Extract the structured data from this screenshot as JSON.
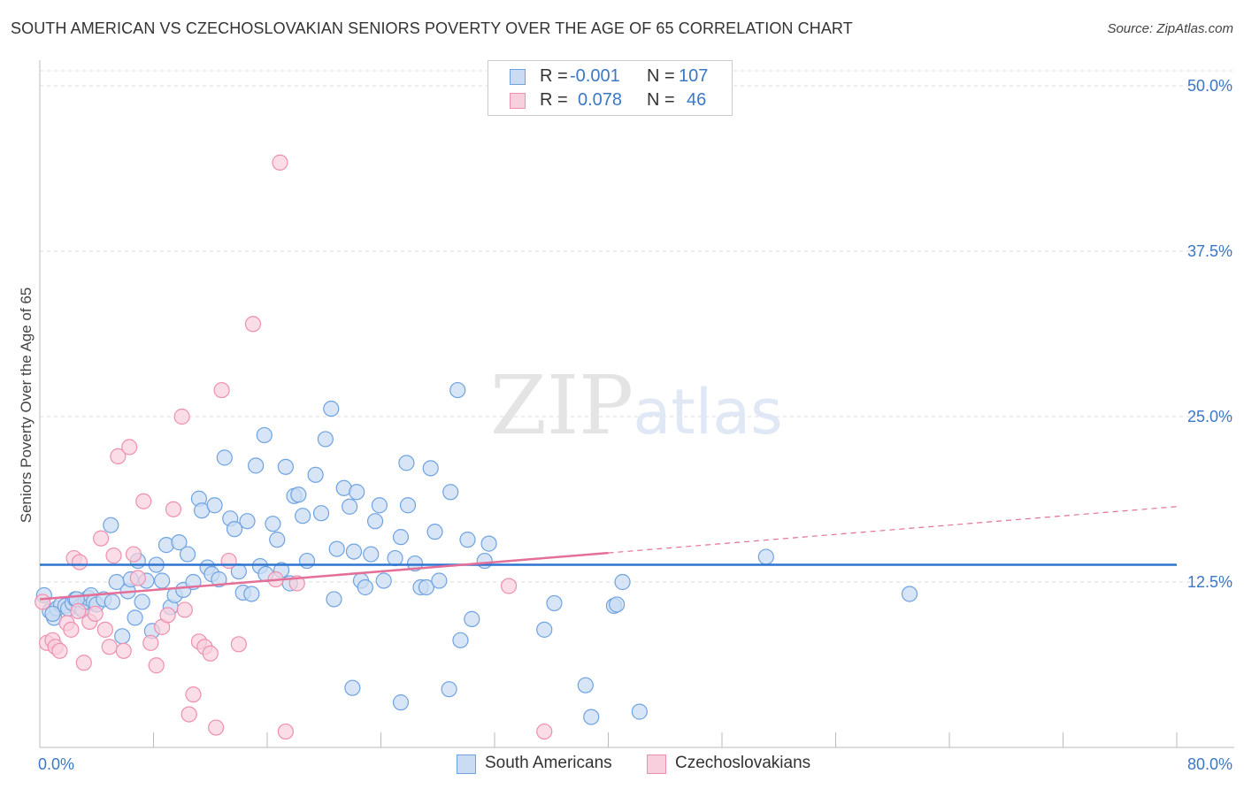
{
  "header": {
    "title": "SOUTH AMERICAN VS CZECHOSLOVAKIAN SENIORS POVERTY OVER THE AGE OF 65 CORRELATION CHART",
    "source": "Source: ZipAtlas.com"
  },
  "watermark": {
    "zip": "ZIP",
    "atlas": "atlas"
  },
  "legend": {
    "rows": [
      {
        "r_label": "R =",
        "r_value": "-0.001",
        "n_label": "N =",
        "n_value": "107",
        "color": "#6fa3e0"
      },
      {
        "r_label": "R =",
        "r_value": "0.078",
        "n_label": "N =",
        "n_value": "46",
        "color": "#f08fb0"
      }
    ]
  },
  "bottom_legend": {
    "series1": "South Americans",
    "series2": "Czechoslovakians"
  },
  "colors": {
    "blue_fill": "#c9dcf3",
    "blue_stroke": "#6fa3e0",
    "blue_line": "#2f74d0",
    "pink_fill": "#f8cfdc",
    "pink_stroke": "#ee8fb0",
    "pink_line": "#e46f98",
    "axis_text": "#3a78c6",
    "grid": "#dddddd"
  },
  "chart_data": {
    "type": "scatter",
    "title": "SOUTH AMERICAN VS CZECHOSLOVAKIAN SENIORS POVERTY OVER THE AGE OF 65 CORRELATION CHART",
    "xlabel": "",
    "ylabel": "Seniors Poverty Over the Age of 65",
    "xlim": [
      0,
      80
    ],
    "ylim": [
      0,
      50
    ],
    "x_tick_labels": [
      "0.0%",
      "80.0%"
    ],
    "y_ticks": [
      12.5,
      25.0,
      37.5,
      50.0
    ],
    "y_tick_labels": [
      "12.5%",
      "25.0%",
      "37.5%",
      "50.0%"
    ],
    "series": [
      {
        "name": "South Americans",
        "r": -0.001,
        "n": 107,
        "trend": {
          "x": [
            0,
            80
          ],
          "y": [
            13.8,
            13.8
          ]
        },
        "points": [
          [
            0.3,
            11.5
          ],
          [
            0.7,
            10.3
          ],
          [
            1.0,
            9.8
          ],
          [
            1.2,
            10.5
          ],
          [
            1.5,
            10.8
          ],
          [
            1.8,
            10.7
          ],
          [
            2.0,
            10.5
          ],
          [
            2.3,
            10.9
          ],
          [
            2.5,
            11.2
          ],
          [
            2.8,
            10.6
          ],
          [
            3.0,
            10.4
          ],
          [
            3.2,
            11.0
          ],
          [
            3.4,
            11.3
          ],
          [
            3.6,
            11.5
          ],
          [
            3.8,
            11.0
          ],
          [
            4.0,
            10.8
          ],
          [
            4.5,
            11.2
          ],
          [
            5.0,
            16.8
          ],
          [
            5.1,
            11.0
          ],
          [
            5.4,
            12.5
          ],
          [
            5.8,
            8.4
          ],
          [
            6.2,
            11.8
          ],
          [
            6.4,
            12.7
          ],
          [
            6.7,
            9.8
          ],
          [
            6.9,
            14.1
          ],
          [
            7.2,
            11.0
          ],
          [
            7.5,
            12.6
          ],
          [
            7.9,
            8.8
          ],
          [
            8.2,
            13.8
          ],
          [
            8.6,
            12.6
          ],
          [
            8.9,
            15.3
          ],
          [
            9.2,
            10.6
          ],
          [
            9.5,
            11.5
          ],
          [
            9.8,
            15.5
          ],
          [
            10.1,
            11.9
          ],
          [
            10.4,
            14.6
          ],
          [
            10.8,
            12.5
          ],
          [
            11.2,
            18.8
          ],
          [
            11.4,
            17.9
          ],
          [
            11.8,
            13.6
          ],
          [
            12.1,
            13.1
          ],
          [
            12.3,
            18.3
          ],
          [
            12.6,
            12.7
          ],
          [
            13.0,
            21.9
          ],
          [
            13.4,
            17.3
          ],
          [
            13.7,
            16.5
          ],
          [
            14.0,
            13.3
          ],
          [
            14.3,
            11.7
          ],
          [
            14.6,
            17.1
          ],
          [
            14.9,
            11.6
          ],
          [
            15.2,
            21.3
          ],
          [
            15.5,
            13.7
          ],
          [
            15.8,
            23.6
          ],
          [
            15.9,
            13.1
          ],
          [
            16.4,
            16.9
          ],
          [
            16.7,
            15.7
          ],
          [
            17.0,
            13.4
          ],
          [
            17.3,
            21.2
          ],
          [
            17.6,
            12.4
          ],
          [
            17.9,
            19.0
          ],
          [
            18.2,
            19.1
          ],
          [
            18.5,
            17.5
          ],
          [
            18.8,
            14.1
          ],
          [
            19.4,
            20.6
          ],
          [
            19.8,
            17.7
          ],
          [
            20.1,
            23.3
          ],
          [
            20.5,
            25.6
          ],
          [
            20.7,
            11.2
          ],
          [
            20.9,
            15.0
          ],
          [
            21.4,
            19.6
          ],
          [
            21.8,
            18.2
          ],
          [
            22.1,
            14.8
          ],
          [
            22.3,
            19.3
          ],
          [
            22.6,
            12.6
          ],
          [
            22.9,
            12.1
          ],
          [
            23.3,
            14.6
          ],
          [
            23.6,
            17.1
          ],
          [
            23.9,
            18.3
          ],
          [
            24.2,
            12.6
          ],
          [
            25.0,
            14.3
          ],
          [
            25.4,
            15.9
          ],
          [
            25.8,
            21.5
          ],
          [
            25.9,
            18.3
          ],
          [
            26.4,
            13.9
          ],
          [
            26.8,
            12.1
          ],
          [
            27.2,
            12.1
          ],
          [
            27.5,
            21.1
          ],
          [
            27.8,
            16.3
          ],
          [
            28.1,
            12.6
          ],
          [
            28.9,
            19.3
          ],
          [
            29.4,
            27.0
          ],
          [
            29.6,
            8.1
          ],
          [
            30.1,
            15.7
          ],
          [
            30.4,
            9.7
          ],
          [
            31.3,
            14.1
          ],
          [
            31.6,
            15.4
          ],
          [
            35.5,
            8.9
          ],
          [
            36.2,
            10.9
          ],
          [
            22.0,
            4.5
          ],
          [
            25.4,
            3.4
          ],
          [
            28.8,
            4.4
          ],
          [
            38.4,
            4.7
          ],
          [
            38.8,
            2.3
          ],
          [
            40.4,
            10.7
          ],
          [
            40.6,
            10.8
          ],
          [
            41.0,
            12.5
          ],
          [
            42.2,
            2.7
          ],
          [
            51.1,
            14.4
          ],
          [
            61.2,
            11.6
          ],
          [
            2.6,
            11.2
          ],
          [
            0.9,
            10.1
          ]
        ]
      },
      {
        "name": "Czechoslovakians",
        "r": 0.078,
        "n": 46,
        "trend": {
          "x": [
            0,
            40
          ],
          "y": [
            11.2,
            14.7
          ],
          "dashed_to": [
            80,
            18.2
          ]
        },
        "points": [
          [
            0.2,
            11.0
          ],
          [
            0.5,
            7.9
          ],
          [
            0.9,
            8.1
          ],
          [
            1.1,
            7.6
          ],
          [
            1.4,
            7.3
          ],
          [
            1.9,
            9.4
          ],
          [
            2.2,
            8.9
          ],
          [
            2.4,
            14.3
          ],
          [
            2.7,
            10.3
          ],
          [
            3.1,
            6.4
          ],
          [
            3.5,
            9.5
          ],
          [
            3.9,
            10.1
          ],
          [
            4.3,
            15.8
          ],
          [
            4.6,
            8.9
          ],
          [
            4.9,
            7.6
          ],
          [
            5.2,
            14.5
          ],
          [
            5.5,
            22.0
          ],
          [
            5.9,
            7.3
          ],
          [
            6.3,
            22.7
          ],
          [
            6.6,
            14.6
          ],
          [
            6.9,
            12.8
          ],
          [
            7.3,
            18.6
          ],
          [
            7.8,
            7.9
          ],
          [
            8.2,
            6.2
          ],
          [
            8.6,
            9.1
          ],
          [
            9.0,
            10.0
          ],
          [
            9.4,
            18.0
          ],
          [
            10.0,
            25.0
          ],
          [
            10.2,
            10.4
          ],
          [
            10.5,
            2.5
          ],
          [
            10.8,
            4.0
          ],
          [
            11.2,
            8.0
          ],
          [
            11.6,
            7.6
          ],
          [
            12.0,
            7.1
          ],
          [
            12.4,
            1.5
          ],
          [
            12.8,
            27.0
          ],
          [
            13.3,
            14.1
          ],
          [
            14.0,
            7.8
          ],
          [
            15.0,
            32.0
          ],
          [
            16.6,
            12.7
          ],
          [
            16.9,
            44.2
          ],
          [
            17.3,
            1.2
          ],
          [
            18.1,
            12.4
          ],
          [
            33.0,
            12.2
          ],
          [
            35.5,
            1.2
          ],
          [
            2.8,
            14.0
          ]
        ]
      }
    ]
  }
}
